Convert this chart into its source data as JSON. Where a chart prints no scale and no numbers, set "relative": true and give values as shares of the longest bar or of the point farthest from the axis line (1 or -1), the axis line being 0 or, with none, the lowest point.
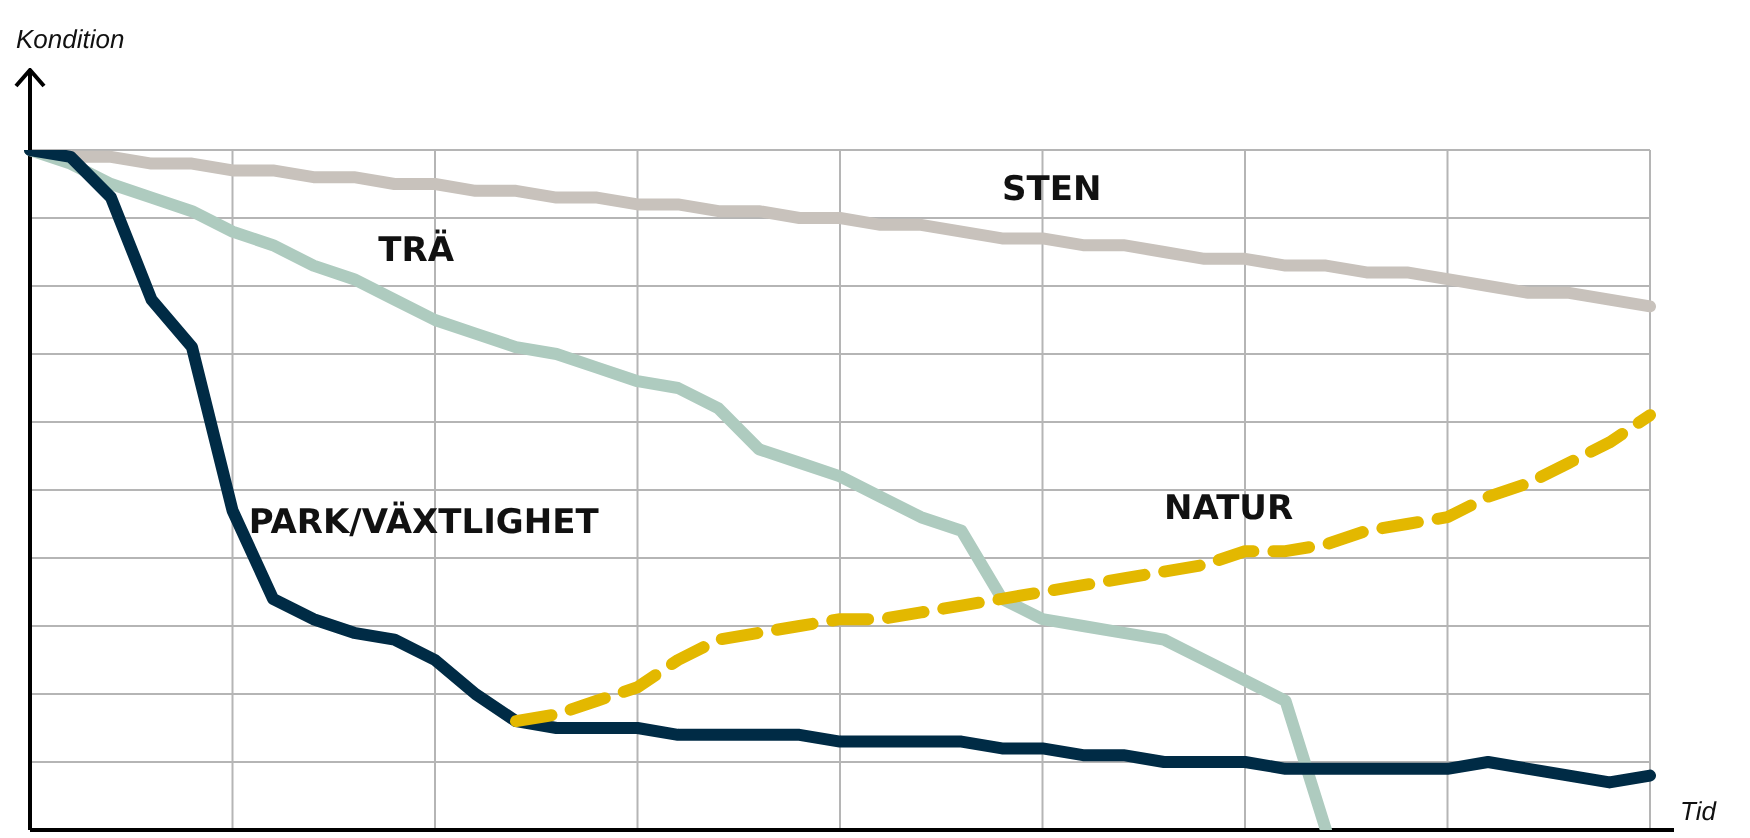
{
  "chart_data": {
    "type": "line",
    "xlabel": "Tid",
    "ylabel": "Kondition",
    "relative": true,
    "grid": true,
    "legend": false,
    "tick_labels": false,
    "marker": "none",
    "categories": [
      null,
      null,
      null,
      null,
      null,
      null,
      null,
      null,
      null,
      null,
      null,
      null,
      null,
      null,
      null,
      null,
      null,
      null,
      null,
      null,
      null,
      null,
      null,
      null,
      null,
      null,
      null,
      null,
      null,
      null,
      null,
      null,
      null,
      null,
      null,
      null,
      null,
      null,
      null,
      null,
      null
    ],
    "series": [
      {
        "name": "STEN",
        "color": "#c8c2bc",
        "line_style": "solid",
        "values": [
          1,
          0.99,
          0.99,
          0.98,
          0.98,
          0.97,
          0.97,
          0.96,
          0.96,
          0.95,
          0.95,
          0.94,
          0.94,
          0.93,
          0.93,
          0.92,
          0.92,
          0.91,
          0.91,
          0.9,
          0.9,
          0.89,
          0.89,
          0.88,
          0.87,
          0.87,
          0.86,
          0.86,
          0.85,
          0.84,
          0.84,
          0.83,
          0.83,
          0.82,
          0.82,
          0.81,
          0.8,
          0.79,
          0.79,
          0.78,
          0.77
        ]
      },
      {
        "name": "TRÄ",
        "color": "#aecbbf",
        "line_style": "solid",
        "values": [
          1,
          0.98,
          0.95,
          0.93,
          0.91,
          0.88,
          0.86,
          0.83,
          0.81,
          0.78,
          0.75,
          0.73,
          0.71,
          0.7,
          0.68,
          0.66,
          0.65,
          0.62,
          0.56,
          0.54,
          0.52,
          0.49,
          0.46,
          0.44,
          0.34,
          0.31,
          0.3,
          0.29,
          0.28,
          0.25,
          0.22,
          0.19,
          0,
          null,
          null,
          null,
          null,
          null,
          null,
          null,
          null
        ]
      },
      {
        "name": "PARK/VÄXTLIGHET",
        "color": "#002b45",
        "line_style": "solid",
        "values": [
          1,
          0.99,
          0.93,
          0.78,
          0.71,
          0.47,
          0.34,
          0.31,
          0.29,
          0.28,
          0.25,
          0.2,
          0.16,
          0.15,
          0.15,
          0.15,
          0.14,
          0.14,
          0.14,
          0.14,
          0.13,
          0.13,
          0.13,
          0.13,
          0.12,
          0.12,
          0.11,
          0.11,
          0.1,
          0.1,
          0.1,
          0.09,
          0.09,
          0.09,
          0.09,
          0.09,
          0.1,
          0.09,
          0.08,
          0.07,
          0.08
        ]
      },
      {
        "name": "NATUR",
        "color": "#e3b800",
        "line_style": "dashed",
        "values": [
          null,
          null,
          null,
          null,
          null,
          null,
          null,
          null,
          null,
          null,
          null,
          null,
          0.16,
          0.17,
          0.19,
          0.21,
          0.25,
          0.28,
          0.29,
          0.3,
          0.31,
          0.31,
          0.32,
          0.33,
          0.34,
          0.35,
          0.36,
          0.37,
          0.38,
          0.39,
          0.41,
          0.41,
          0.42,
          0.44,
          0.45,
          0.46,
          0.49,
          0.51,
          0.54,
          0.57,
          0.61
        ]
      }
    ]
  }
}
